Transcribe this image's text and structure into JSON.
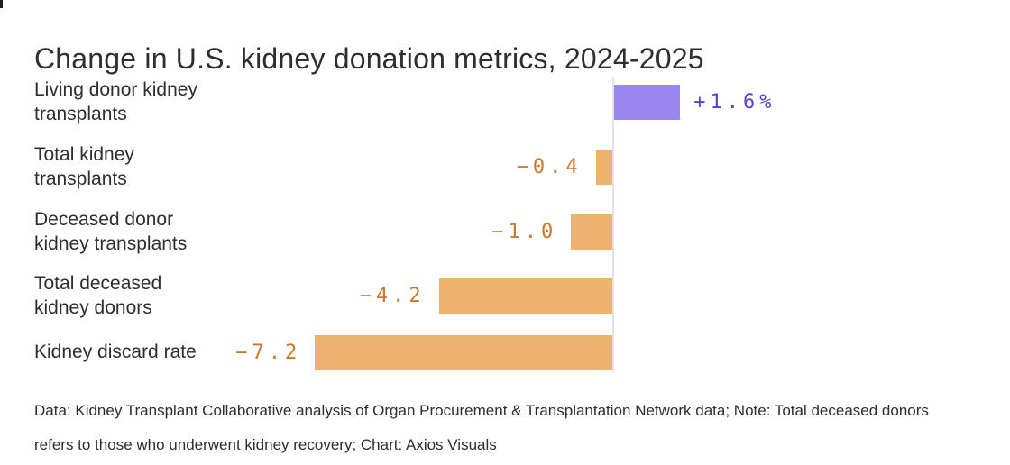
{
  "title": "Change in U.S. kidney donation metrics, 2024-2025",
  "chart_data": {
    "type": "bar",
    "orientation": "horizontal",
    "title": "Change in U.S. kidney donation metrics, 2024-2025",
    "unit": "percent change",
    "categories": [
      "Living donor kidney transplants",
      "Total kidney transplants",
      "Deceased donor kidney transplants",
      "Total deceased kidney donors",
      "Kidney discard rate"
    ],
    "category_lines": [
      [
        "Living donor kidney",
        "transplants"
      ],
      [
        "Total kidney",
        "transplants"
      ],
      [
        "Deceased donor",
        "kidney transplants"
      ],
      [
        "Total deceased",
        "kidney donors"
      ],
      [
        "Kidney discard rate"
      ]
    ],
    "values": [
      1.6,
      -0.4,
      -1.0,
      -4.2,
      -7.2
    ],
    "value_labels": [
      "+1.6%",
      "−0.4",
      "−1.0",
      "−4.2",
      "−7.2"
    ],
    "xlim": [
      -7.5,
      2.1
    ],
    "baseline": 0,
    "grid": false,
    "legend": false,
    "colors": {
      "positive_bar": "#9c87f0",
      "positive_label": "#5b3fd6",
      "negative_bar": "#ecb26e",
      "negative_label": "#c9792f",
      "axis_line": "#e3e3e3",
      "text": "#2e2e2e"
    }
  },
  "footer": {
    "line1": "Data: Kidney Transplant Collaborative analysis of Organ Procurement & Transplantation Network data; Note: Total deceased donors",
    "line2": "refers to those who underwent kidney recovery; Chart: Axios Visuals"
  }
}
